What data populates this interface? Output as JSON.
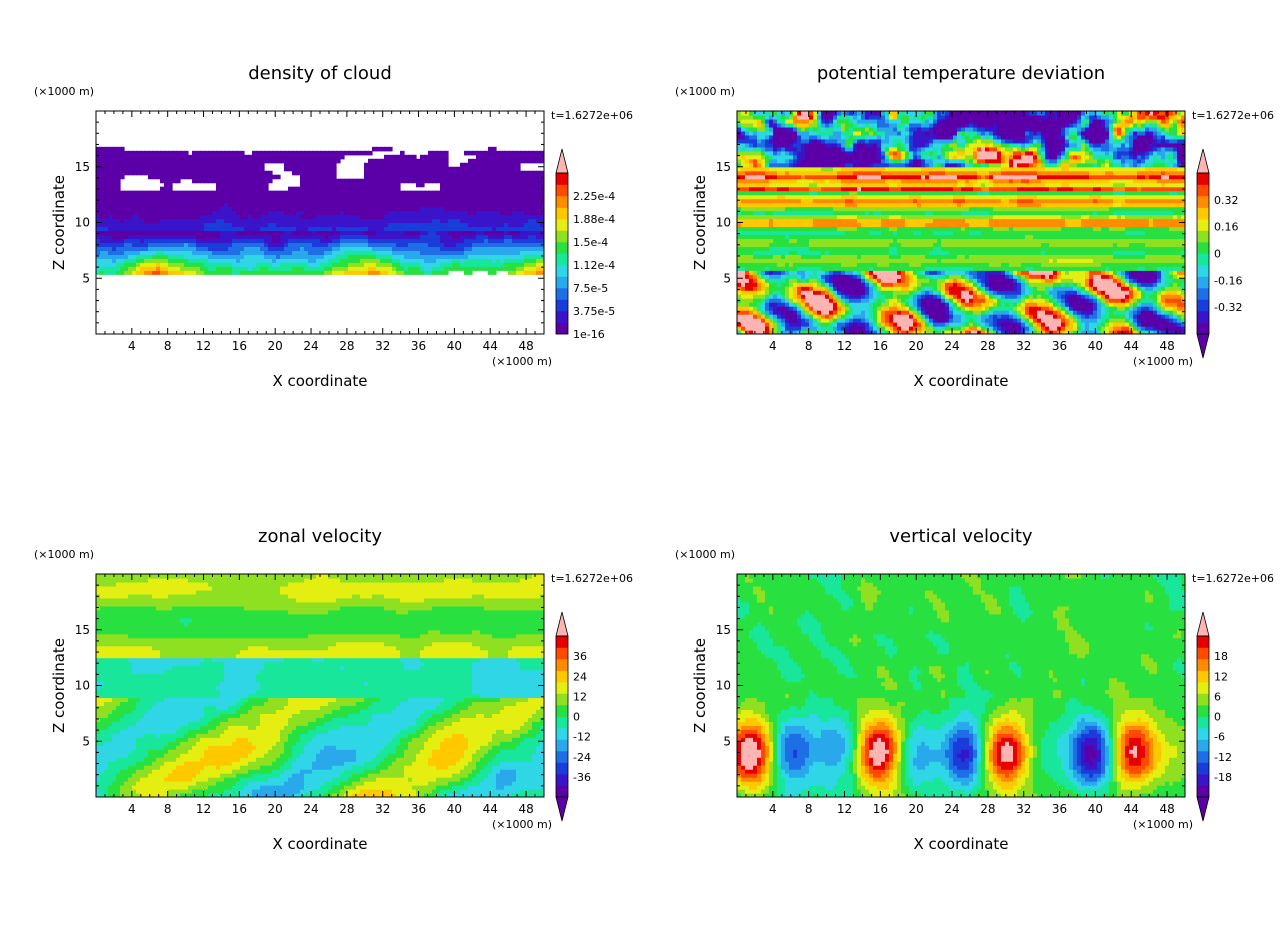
{
  "chart_data": [
    {
      "type": "heatmap",
      "title": "density of cloud",
      "xlabel": "X coordinate",
      "ylabel": "Z coordinate",
      "x_unit": "(×1000 m)",
      "y_unit": "(×1000 m)",
      "time_label": "t=1.6272e+06",
      "x_ticks": [
        4,
        8,
        12,
        16,
        20,
        24,
        28,
        32,
        36,
        40,
        44,
        48
      ],
      "y_ticks": [
        5,
        10,
        15
      ],
      "xlim": [
        0,
        50
      ],
      "ylim": [
        0,
        20
      ],
      "colorbar": {
        "labels": [
          "2.25e-4",
          "1.88e-4",
          "1.5e-4",
          "1.12e-4",
          "7.5e-5",
          "3.75e-5",
          "1e-16"
        ],
        "colors": [
          "#5b00a8",
          "#3a14c8",
          "#1a3cd8",
          "#1e6ee6",
          "#29a8ec",
          "#2fd6e6",
          "#18e69a",
          "#28e040",
          "#8ee020",
          "#e4ee10",
          "#ffc800",
          "#ff8c00",
          "#ff4a00",
          "#e60000",
          "#ffb4b4"
        ],
        "top_triangle": true,
        "bottom_triangle": false
      },
      "field_style": "cloud"
    },
    {
      "type": "heatmap",
      "title": "potential temperature deviation",
      "xlabel": "X coordinate",
      "ylabel": "Z coordinate",
      "x_unit": "(×1000 m)",
      "y_unit": "(×1000 m)",
      "time_label": "t=1.6272e+06",
      "x_ticks": [
        4,
        8,
        12,
        16,
        20,
        24,
        28,
        32,
        36,
        40,
        44,
        48
      ],
      "y_ticks": [
        5,
        10,
        15
      ],
      "xlim": [
        0,
        50
      ],
      "ylim": [
        0,
        20
      ],
      "colorbar": {
        "labels": [
          "0.32",
          "0.16",
          "0",
          "-0.16",
          "-0.32"
        ],
        "colors": [
          "#5b00a8",
          "#3a14c8",
          "#1a3cd8",
          "#1e6ee6",
          "#29a8ec",
          "#2fd6e6",
          "#18e69a",
          "#28e040",
          "#8ee020",
          "#e4ee10",
          "#ffc800",
          "#ff8c00",
          "#ff4a00",
          "#e60000",
          "#ffb4b4"
        ],
        "top_triangle": true,
        "bottom_triangle": true
      },
      "field_style": "theta"
    },
    {
      "type": "heatmap",
      "title": "zonal velocity",
      "xlabel": "X coordinate",
      "ylabel": "Z coordinate",
      "x_unit": "(×1000 m)",
      "y_unit": "(×1000 m)",
      "time_label": "t=1.6272e+06",
      "x_ticks": [
        4,
        8,
        12,
        16,
        20,
        24,
        28,
        32,
        36,
        40,
        44,
        48
      ],
      "y_ticks": [
        5,
        10,
        15
      ],
      "xlim": [
        0,
        50
      ],
      "ylim": [
        0,
        20
      ],
      "colorbar": {
        "labels": [
          "36",
          "24",
          "12",
          "0",
          "-12",
          "-24",
          "-36"
        ],
        "colors": [
          "#5b00a8",
          "#3a14c8",
          "#1a3cd8",
          "#1e6ee6",
          "#29a8ec",
          "#2fd6e6",
          "#18e69a",
          "#28e040",
          "#8ee020",
          "#e4ee10",
          "#ffc800",
          "#ff8c00",
          "#ff4a00",
          "#e60000",
          "#ffb4b4"
        ],
        "top_triangle": true,
        "bottom_triangle": true
      },
      "field_style": "zonal"
    },
    {
      "type": "heatmap",
      "title": "vertical velocity",
      "xlabel": "X coordinate",
      "ylabel": "Z coordinate",
      "x_unit": "(×1000 m)",
      "y_unit": "(×1000 m)",
      "time_label": "t=1.6272e+06",
      "x_ticks": [
        4,
        8,
        12,
        16,
        20,
        24,
        28,
        32,
        36,
        40,
        44,
        48
      ],
      "y_ticks": [
        5,
        10,
        15
      ],
      "xlim": [
        0,
        50
      ],
      "ylim": [
        0,
        20
      ],
      "colorbar": {
        "labels": [
          "18",
          "12",
          "6",
          "0",
          "-6",
          "-12",
          "-18"
        ],
        "colors": [
          "#5b00a8",
          "#3a14c8",
          "#1a3cd8",
          "#1e6ee6",
          "#29a8ec",
          "#2fd6e6",
          "#18e69a",
          "#28e040",
          "#8ee020",
          "#e4ee10",
          "#ffc800",
          "#ff8c00",
          "#ff4a00",
          "#e60000",
          "#ffb4b4"
        ],
        "top_triangle": true,
        "bottom_triangle": true
      },
      "field_style": "vertical"
    }
  ]
}
